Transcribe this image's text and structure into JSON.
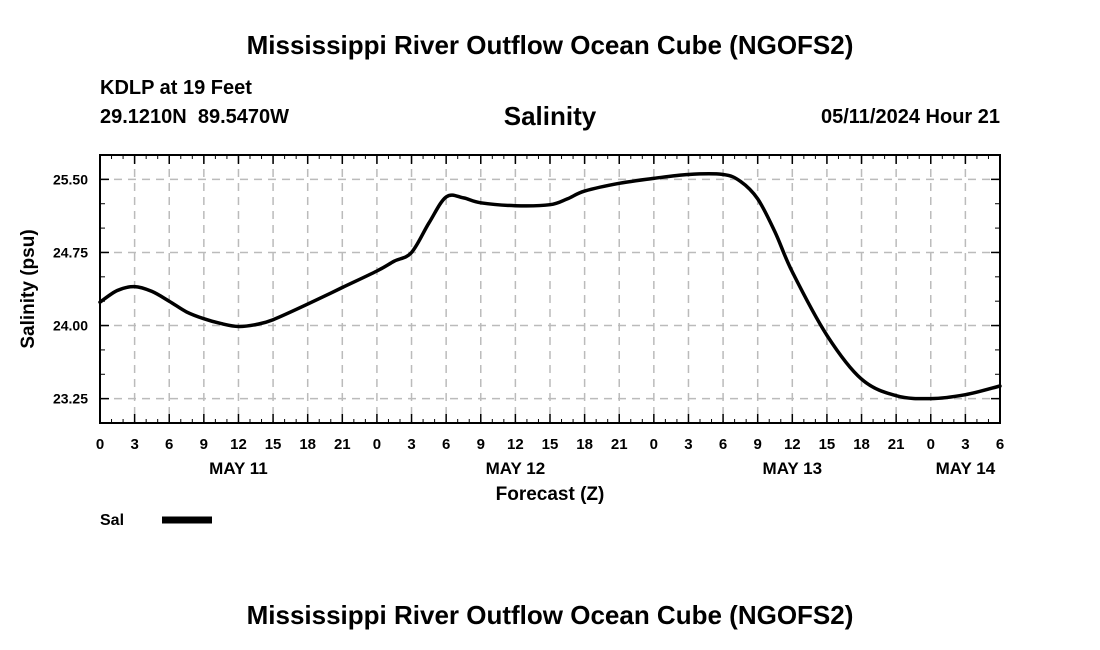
{
  "header": {
    "title": "Mississippi River Outflow Ocean Cube (NGOFS2)",
    "station": "KDLP at 19 Feet",
    "coords": "29.1210N  89.5470W",
    "variable": "Salinity",
    "datetime": "05/11/2024 Hour 21"
  },
  "footer": {
    "title": "Mississippi River Outflow Ocean Cube (NGOFS2)"
  },
  "colors": {
    "line": "#000000",
    "grid": "#bbbbbb"
  },
  "chart_data": {
    "type": "line",
    "title": "Salinity",
    "xlabel": "Forecast (Z)",
    "ylabel": "Salinity (psu)",
    "xlim": [
      0,
      78
    ],
    "ylim": [
      23.0,
      25.75
    ],
    "grid": true,
    "y_ticks": [
      {
        "value": 23.25,
        "label": "23.25"
      },
      {
        "value": 24.0,
        "label": "24.00"
      },
      {
        "value": 24.75,
        "label": "24.75"
      },
      {
        "value": 25.5,
        "label": "25.50"
      }
    ],
    "x_ticks": [
      {
        "value": 0,
        "label": "0"
      },
      {
        "value": 3,
        "label": "3"
      },
      {
        "value": 6,
        "label": "6"
      },
      {
        "value": 9,
        "label": "9"
      },
      {
        "value": 12,
        "label": "12"
      },
      {
        "value": 15,
        "label": "15"
      },
      {
        "value": 18,
        "label": "18"
      },
      {
        "value": 21,
        "label": "21"
      },
      {
        "value": 24,
        "label": "0"
      },
      {
        "value": 27,
        "label": "3"
      },
      {
        "value": 30,
        "label": "6"
      },
      {
        "value": 33,
        "label": "9"
      },
      {
        "value": 36,
        "label": "12"
      },
      {
        "value": 39,
        "label": "15"
      },
      {
        "value": 42,
        "label": "18"
      },
      {
        "value": 45,
        "label": "21"
      },
      {
        "value": 48,
        "label": "0"
      },
      {
        "value": 51,
        "label": "3"
      },
      {
        "value": 54,
        "label": "6"
      },
      {
        "value": 57,
        "label": "9"
      },
      {
        "value": 60,
        "label": "12"
      },
      {
        "value": 63,
        "label": "15"
      },
      {
        "value": 66,
        "label": "18"
      },
      {
        "value": 69,
        "label": "21"
      },
      {
        "value": 72,
        "label": "0"
      },
      {
        "value": 75,
        "label": "3"
      },
      {
        "value": 78,
        "label": "6"
      }
    ],
    "date_labels": [
      {
        "value": 12,
        "label": "MAY 11"
      },
      {
        "value": 36,
        "label": "MAY 12"
      },
      {
        "value": 60,
        "label": "MAY 13"
      },
      {
        "value": 75,
        "label": "MAY 14"
      }
    ],
    "legend": {
      "label": "Sal",
      "placement": "bottom-left"
    },
    "series": [
      {
        "name": "Sal",
        "x": [
          0,
          1.5,
          3,
          4.5,
          6,
          7.5,
          9,
          10.5,
          12,
          13.5,
          15,
          18,
          21,
          24,
          25.5,
          27,
          28.5,
          30,
          31.5,
          33,
          36,
          39,
          40.5,
          42,
          45,
          48,
          51,
          54,
          55.5,
          57,
          58.5,
          60,
          63,
          66,
          69,
          72,
          75,
          78
        ],
        "values": [
          24.24,
          24.36,
          24.4,
          24.35,
          24.25,
          24.14,
          24.07,
          24.02,
          23.99,
          24.01,
          24.06,
          24.22,
          24.39,
          24.56,
          24.66,
          24.75,
          25.05,
          25.32,
          25.31,
          25.26,
          25.23,
          25.24,
          25.3,
          25.38,
          25.46,
          25.51,
          25.55,
          25.55,
          25.48,
          25.3,
          24.96,
          24.55,
          23.9,
          23.45,
          23.28,
          23.25,
          23.29,
          23.38
        ]
      }
    ]
  }
}
